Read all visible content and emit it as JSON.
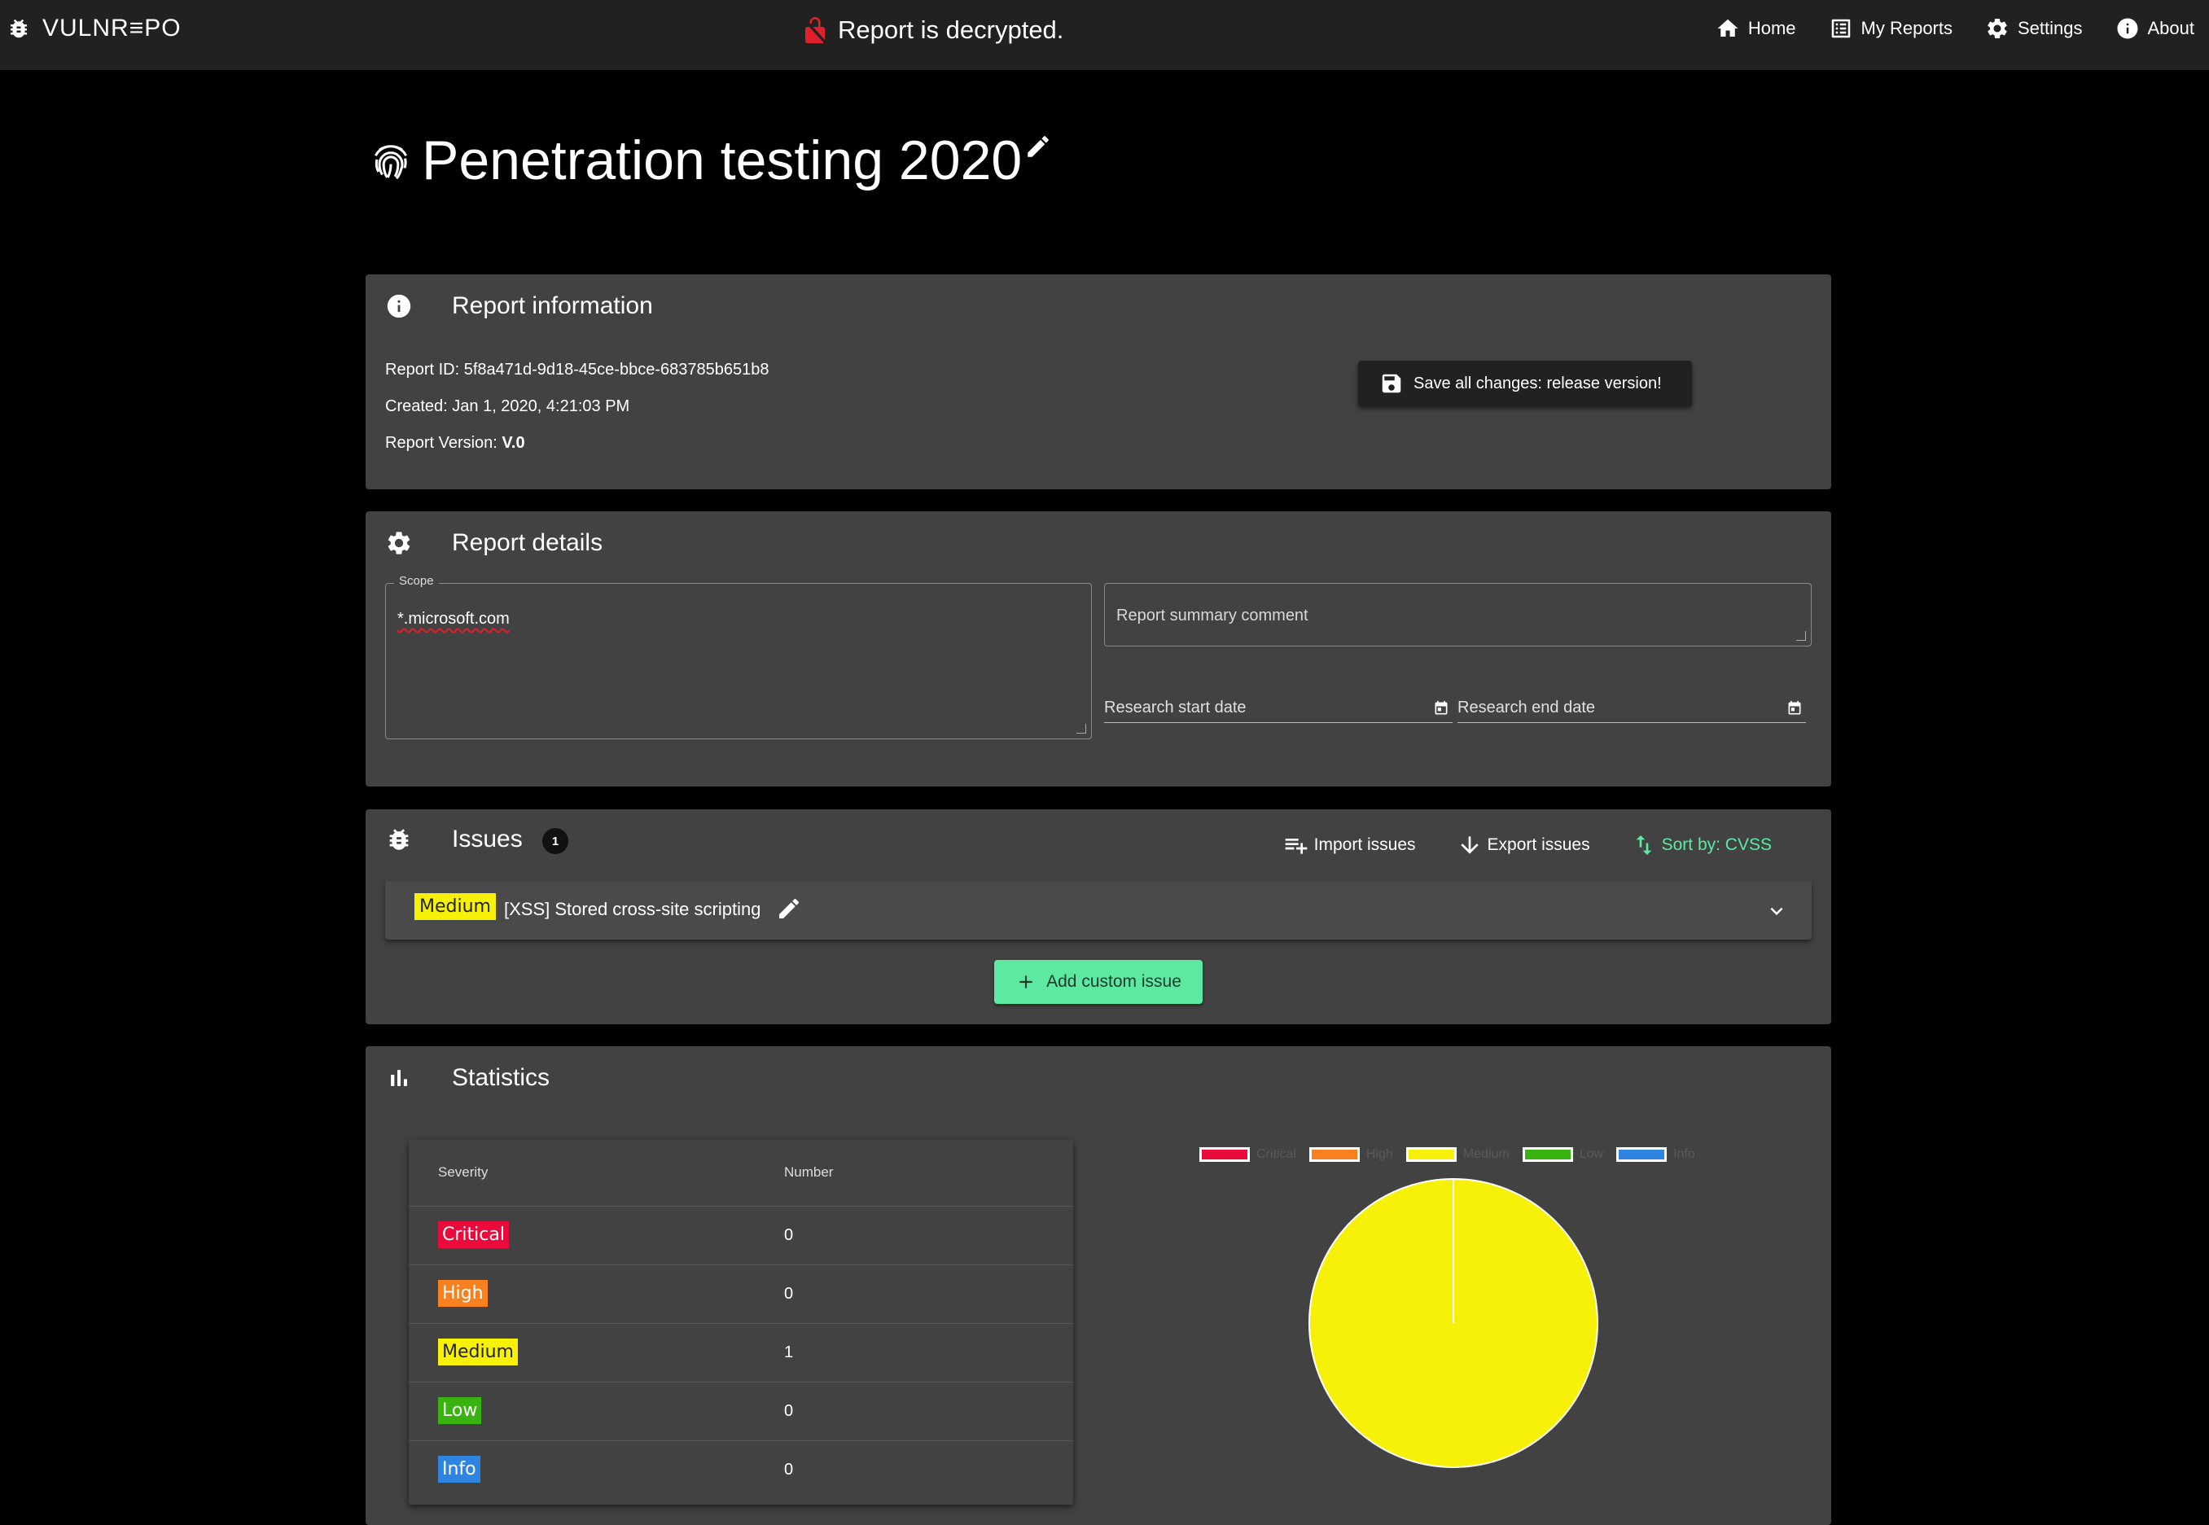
{
  "topbar": {
    "brand": "VULNR≡PO",
    "status": "Report is decrypted.",
    "nav": {
      "home": "Home",
      "my_reports": "My Reports",
      "settings": "Settings",
      "about": "About"
    }
  },
  "page": {
    "title": "Penetration testing 2020"
  },
  "report_information": {
    "heading": "Report information",
    "report_id_label": "Report ID: ",
    "report_id": "5f8a471d-9d18-45ce-bbce-683785b651b8",
    "created_label": "Created: ",
    "created": "Jan 1, 2020, 4:21:03 PM",
    "version_label": "Report Version: ",
    "version": "V.0",
    "save_button": "Save all changes: release version!"
  },
  "report_details": {
    "heading": "Report details",
    "scope_label": "Scope",
    "scope_value": "*.microsoft.com",
    "summary_placeholder": "Report summary comment",
    "start_date_label": "Research start date",
    "end_date_label": "Research end date"
  },
  "issues": {
    "heading": "Issues",
    "count": "1",
    "import": "Import issues",
    "export": "Export issues",
    "sort": "Sort by: CVSS",
    "items": [
      {
        "severity": "Medium",
        "title": "[XSS] Stored cross-site scripting"
      }
    ],
    "add_button": "Add custom issue"
  },
  "statistics": {
    "heading": "Statistics",
    "table": {
      "col_severity": "Severity",
      "col_number": "Number",
      "rows": [
        {
          "severity": "Critical",
          "number": "0"
        },
        {
          "severity": "High",
          "number": "0"
        },
        {
          "severity": "Medium",
          "number": "1"
        },
        {
          "severity": "Low",
          "number": "0"
        },
        {
          "severity": "Info",
          "number": "0"
        }
      ]
    }
  },
  "colors": {
    "critical": "#ea0a3b",
    "high": "#f8801e",
    "medium": "#f7f009",
    "low": "#39b310",
    "info": "#2e84e0",
    "accent": "#5ee9a3"
  },
  "chart_data": {
    "type": "pie",
    "categories": [
      "Critical",
      "High",
      "Medium",
      "Low",
      "Info"
    ],
    "values": [
      0,
      0,
      1,
      0,
      0
    ],
    "colors": [
      "#ea0a3b",
      "#f8801e",
      "#f7f009",
      "#39b310",
      "#2e84e0"
    ],
    "legend": "top"
  }
}
